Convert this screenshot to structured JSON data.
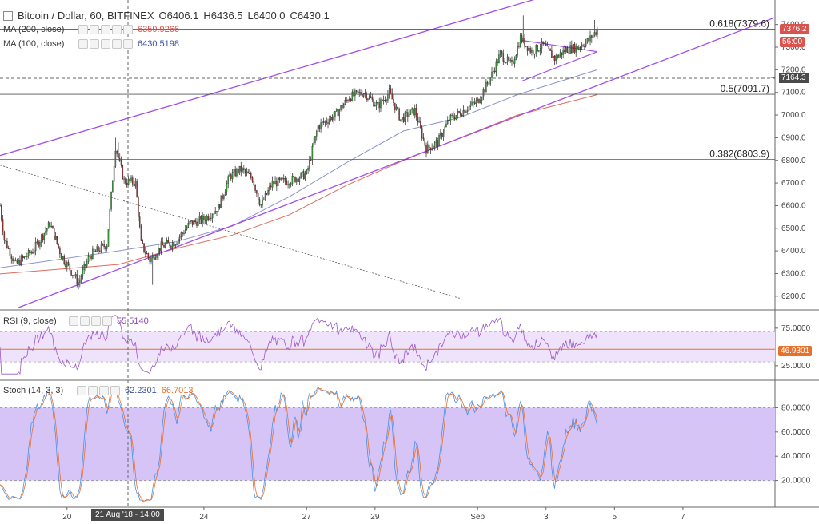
{
  "header": {
    "title": "Bitcoin / Dollar, 60, BITFINEX",
    "open": "O6406.1",
    "high": "H6436.5",
    "low": "L6400.0",
    "close": "C6430.1"
  },
  "indicators": {
    "ma200": {
      "label": "MA (200, close)",
      "value": "6359.9266",
      "color": "#d9534f"
    },
    "ma100": {
      "label": "MA (100, close)",
      "value": "6430.5198",
      "color": "#3d52a3"
    },
    "rsi": {
      "label": "RSI (9, close)",
      "value": "55.5140",
      "line_value": "46.9301"
    },
    "stoch": {
      "label": "Stoch (14, 3, 3)",
      "k": "62.2301",
      "d": "66.7013"
    }
  },
  "price_tags": {
    "last": "7376.2",
    "countdown": "56:00",
    "crosshair": "7164.3"
  },
  "crosshair_time": "21 Aug '18 - 14:00",
  "fib_levels": [
    {
      "label": "0.618(7379.6)",
      "price": 7379.6
    },
    {
      "label": "0.5(7091.7)",
      "price": 7091.7
    },
    {
      "label": "0.382(6803.9)",
      "price": 6803.9
    }
  ],
  "price_axis": [
    "7400.0",
    "7300.0",
    "7200.0",
    "7100.0",
    "7000.0",
    "6900.0",
    "6800.0",
    "6700.0",
    "6600.0",
    "6500.0",
    "6400.0",
    "6300.0",
    "6200.0"
  ],
  "rsi_axis": [
    "75.0000",
    "25.0000"
  ],
  "stoch_axis": [
    "80.0000",
    "60.0000",
    "40.0000",
    "20.0000"
  ],
  "time_axis": [
    {
      "label": "20",
      "hour": 64
    },
    {
      "label": "24",
      "hour": 160
    },
    {
      "label": "27",
      "hour": 232
    },
    {
      "label": "29",
      "hour": 280
    },
    {
      "label": "Sep",
      "hour": 352
    },
    {
      "label": "3",
      "hour": 400
    },
    {
      "label": "5",
      "hour": 448
    },
    {
      "label": "7",
      "hour": 496
    }
  ],
  "colors": {
    "up": "#3a9c3a",
    "down": "#a33232",
    "channel": "#a24ce8",
    "ma200": "#e06a5a",
    "ma100": "#8a94c9",
    "rsi": "#9b59c9",
    "rsi_band": "#efe3fb",
    "stoch_band": "#d5c4f5",
    "stoch_k": "#4a90e2",
    "stoch_d": "#e8702a"
  },
  "chart_data": {
    "type": "candlestick",
    "title": "Bitcoin / Dollar, 60, BITFINEX",
    "ylim": [
      6150,
      7480
    ],
    "x_unit": "hours since Aug 17 00:00 (hourly candles)",
    "x_range_hours": [
      17,
      560
    ],
    "anchor_closes": [
      {
        "hour": 17,
        "close": 6600
      },
      {
        "hour": 20,
        "close": 6450
      },
      {
        "hour": 28,
        "close": 6340
      },
      {
        "hour": 40,
        "close": 6400
      },
      {
        "hour": 52,
        "close": 6520
      },
      {
        "hour": 60,
        "close": 6380
      },
      {
        "hour": 72,
        "close": 6260
      },
      {
        "hour": 80,
        "close": 6380
      },
      {
        "hour": 92,
        "close": 6430
      },
      {
        "hour": 98,
        "close": 6860
      },
      {
        "hour": 104,
        "close": 6710
      },
      {
        "hour": 112,
        "close": 6700
      },
      {
        "hour": 116,
        "close": 6430
      },
      {
        "hour": 122,
        "close": 6360
      },
      {
        "hour": 130,
        "close": 6420
      },
      {
        "hour": 140,
        "close": 6440
      },
      {
        "hour": 150,
        "close": 6520
      },
      {
        "hour": 160,
        "close": 6540
      },
      {
        "hour": 170,
        "close": 6590
      },
      {
        "hour": 178,
        "close": 6730
      },
      {
        "hour": 186,
        "close": 6760
      },
      {
        "hour": 194,
        "close": 6720
      },
      {
        "hour": 200,
        "close": 6600
      },
      {
        "hour": 208,
        "close": 6700
      },
      {
        "hour": 220,
        "close": 6710
      },
      {
        "hour": 232,
        "close": 6740
      },
      {
        "hour": 240,
        "close": 6950
      },
      {
        "hour": 252,
        "close": 7000
      },
      {
        "hour": 262,
        "close": 7080
      },
      {
        "hour": 272,
        "close": 7100
      },
      {
        "hour": 282,
        "close": 7040
      },
      {
        "hour": 290,
        "close": 7100
      },
      {
        "hour": 298,
        "close": 6980
      },
      {
        "hour": 308,
        "close": 7020
      },
      {
        "hour": 316,
        "close": 6850
      },
      {
        "hour": 324,
        "close": 6880
      },
      {
        "hour": 332,
        "close": 6980
      },
      {
        "hour": 342,
        "close": 7020
      },
      {
        "hour": 352,
        "close": 7060
      },
      {
        "hour": 360,
        "close": 7150
      },
      {
        "hour": 368,
        "close": 7270
      },
      {
        "hour": 376,
        "close": 7220
      },
      {
        "hour": 382,
        "close": 7340
      },
      {
        "hour": 390,
        "close": 7280
      },
      {
        "hour": 398,
        "close": 7310
      },
      {
        "hour": 406,
        "close": 7250
      },
      {
        "hour": 414,
        "close": 7290
      },
      {
        "hour": 422,
        "close": 7300
      },
      {
        "hour": 430,
        "close": 7330
      },
      {
        "hour": 436,
        "close": 7376.2
      }
    ],
    "overlays": {
      "upper_channel": [
        [
          0,
          6790
        ],
        [
          560,
          7820
        ]
      ],
      "lower_channel": [
        [
          30,
          6150
        ],
        [
          560,
          7430
        ]
      ],
      "ma200": [
        [
          0,
          6290
        ],
        [
          100,
          6340
        ],
        [
          140,
          6410
        ],
        [
          180,
          6470
        ],
        [
          220,
          6560
        ],
        [
          260,
          6690
        ],
        [
          300,
          6800
        ],
        [
          340,
          6900
        ],
        [
          380,
          7000
        ],
        [
          436,
          7090
        ]
      ],
      "ma100": [
        [
          0,
          6310
        ],
        [
          100,
          6400
        ],
        [
          140,
          6440
        ],
        [
          180,
          6510
        ],
        [
          220,
          6640
        ],
        [
          260,
          6790
        ],
        [
          300,
          6930
        ],
        [
          340,
          6990
        ],
        [
          380,
          7090
        ],
        [
          436,
          7200
        ]
      ],
      "triangle_upper": [
        [
          383,
          7330
        ],
        [
          436,
          7280
        ]
      ],
      "triangle_lower": [
        [
          383,
          7150
        ],
        [
          436,
          7280
        ]
      ],
      "dashed_trendline": [
        [
          0,
          6810
        ],
        [
          340,
          6190
        ]
      ]
    },
    "rsi_levels": {
      "upper": 70,
      "lower": 30,
      "current": 46.9301
    },
    "stoch_levels": {
      "upper": 80,
      "lower": 20
    }
  }
}
